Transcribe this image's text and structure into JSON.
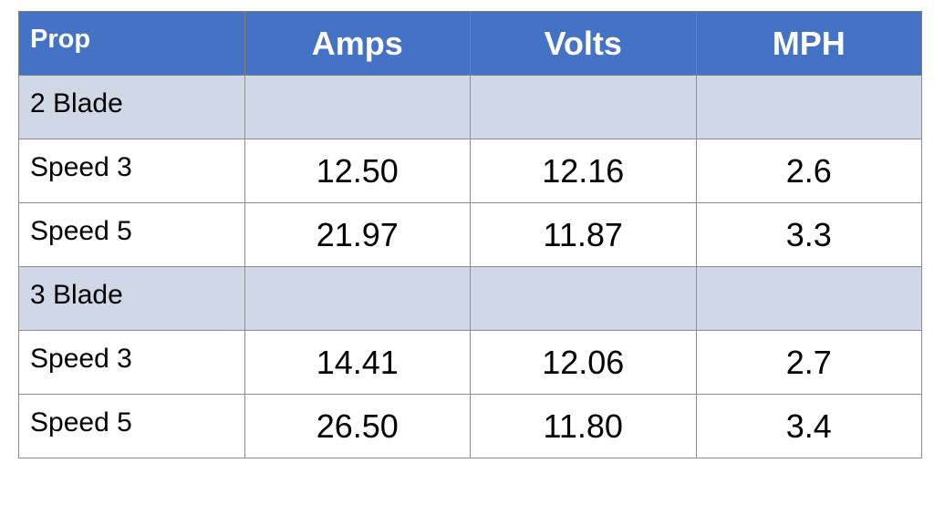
{
  "table": {
    "header": [
      "Prop",
      "Amps",
      "Volts",
      "MPH"
    ],
    "rows": [
      {
        "label": "2 Blade"
      },
      {
        "label": "Speed 3",
        "cells": [
          "12.50",
          "12.16",
          "2.6"
        ]
      },
      {
        "label": "Speed 5",
        "cells": [
          "21.97",
          "11.87",
          "3.3"
        ]
      },
      {
        "label": "3 Blade"
      },
      {
        "label": "Speed 3",
        "cells": [
          "14.41",
          "12.06",
          "2.7"
        ]
      },
      {
        "label": "Speed 5",
        "cells": [
          "26.50",
          "11.80",
          "3.4"
        ]
      }
    ]
  }
}
